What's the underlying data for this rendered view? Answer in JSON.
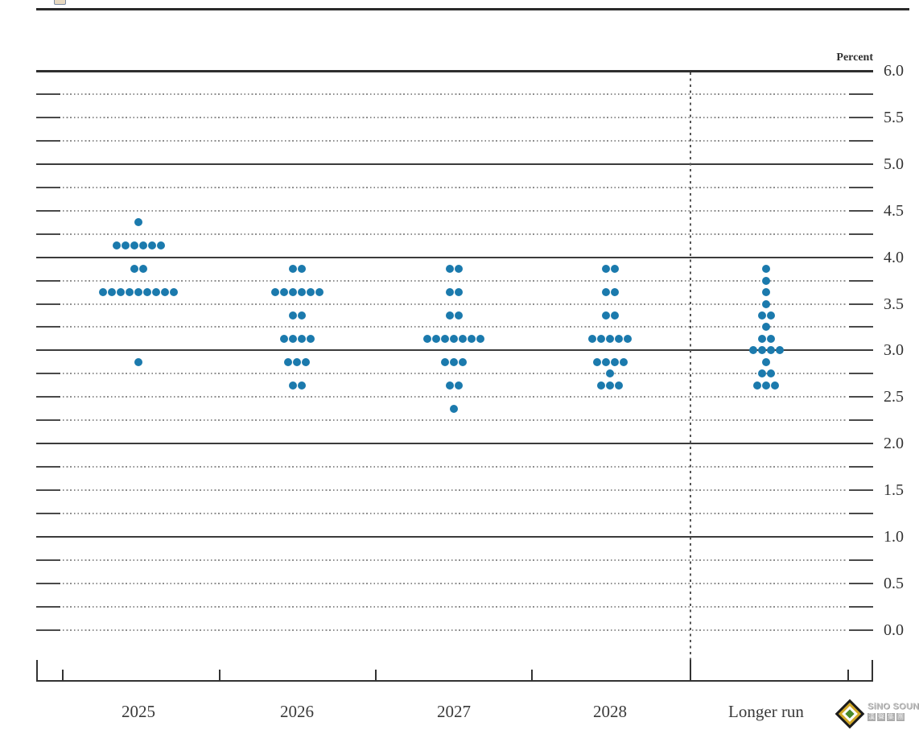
{
  "page": {
    "background": "#ffffff"
  },
  "header": {
    "cropped_fragment_note": "tiny cut-off element at top-left edge"
  },
  "chart_data": {
    "type": "scatter",
    "variant": "fomc-dot-plot",
    "title": "",
    "xlabel": "",
    "ylabel": "Percent",
    "ylim": [
      0.0,
      6.0
    ],
    "y_minor_step": 0.25,
    "y_label_step": 0.5,
    "y_solid_gridlines": [
      6.0,
      5.0,
      4.0,
      3.0,
      2.0,
      1.0
    ],
    "y_tick_labels": [
      "6.0",
      "5.5",
      "5.0",
      "4.5",
      "4.0",
      "3.5",
      "3.0",
      "2.5",
      "2.0",
      "1.5",
      "1.0",
      "0.5",
      "0.0"
    ],
    "grid": "dotted-quarter-lines-with-edge-ticks",
    "legend_position": "none",
    "dot_color": "#1b7aad",
    "categories": [
      "2025",
      "2026",
      "2027",
      "2028",
      "Longer run"
    ],
    "separator_before_category": "Longer run",
    "series": [
      {
        "name": "2025",
        "dots": [
          {
            "value": 4.375,
            "count": 1
          },
          {
            "value": 4.125,
            "count": 6
          },
          {
            "value": 3.875,
            "count": 2
          },
          {
            "value": 3.625,
            "count": 9
          },
          {
            "value": 2.875,
            "count": 1
          }
        ]
      },
      {
        "name": "2026",
        "dots": [
          {
            "value": 3.875,
            "count": 2
          },
          {
            "value": 3.625,
            "count": 6
          },
          {
            "value": 3.375,
            "count": 2
          },
          {
            "value": 3.125,
            "count": 4
          },
          {
            "value": 2.875,
            "count": 3
          },
          {
            "value": 2.625,
            "count": 2
          }
        ]
      },
      {
        "name": "2027",
        "dots": [
          {
            "value": 3.875,
            "count": 2
          },
          {
            "value": 3.625,
            "count": 2
          },
          {
            "value": 3.375,
            "count": 2
          },
          {
            "value": 3.125,
            "count": 7
          },
          {
            "value": 2.875,
            "count": 3
          },
          {
            "value": 2.625,
            "count": 2
          },
          {
            "value": 2.375,
            "count": 1
          }
        ]
      },
      {
        "name": "2028",
        "dots": [
          {
            "value": 3.875,
            "count": 2
          },
          {
            "value": 3.625,
            "count": 2
          },
          {
            "value": 3.375,
            "count": 2
          },
          {
            "value": 3.125,
            "count": 5
          },
          {
            "value": 2.875,
            "count": 4
          },
          {
            "value": 2.75,
            "count": 1
          },
          {
            "value": 2.625,
            "count": 3
          }
        ]
      },
      {
        "name": "Longer run",
        "dots": [
          {
            "value": 3.875,
            "count": 1
          },
          {
            "value": 3.75,
            "count": 1
          },
          {
            "value": 3.625,
            "count": 1
          },
          {
            "value": 3.5,
            "count": 1
          },
          {
            "value": 3.375,
            "count": 2
          },
          {
            "value": 3.25,
            "count": 1
          },
          {
            "value": 3.125,
            "count": 2
          },
          {
            "value": 3.0,
            "count": 4
          },
          {
            "value": 2.875,
            "count": 1
          },
          {
            "value": 2.75,
            "count": 2
          },
          {
            "value": 2.625,
            "count": 3
          }
        ]
      }
    ]
  },
  "watermark": {
    "brand": "SiNO SOUND",
    "cjk_characters": [
      "漢",
      "聲",
      "集",
      "團"
    ],
    "diamond_colors": {
      "outer": "#1c1c1c",
      "gold": "#d2a827",
      "inner": "#ffffff",
      "center": "#4a8b2c"
    }
  }
}
